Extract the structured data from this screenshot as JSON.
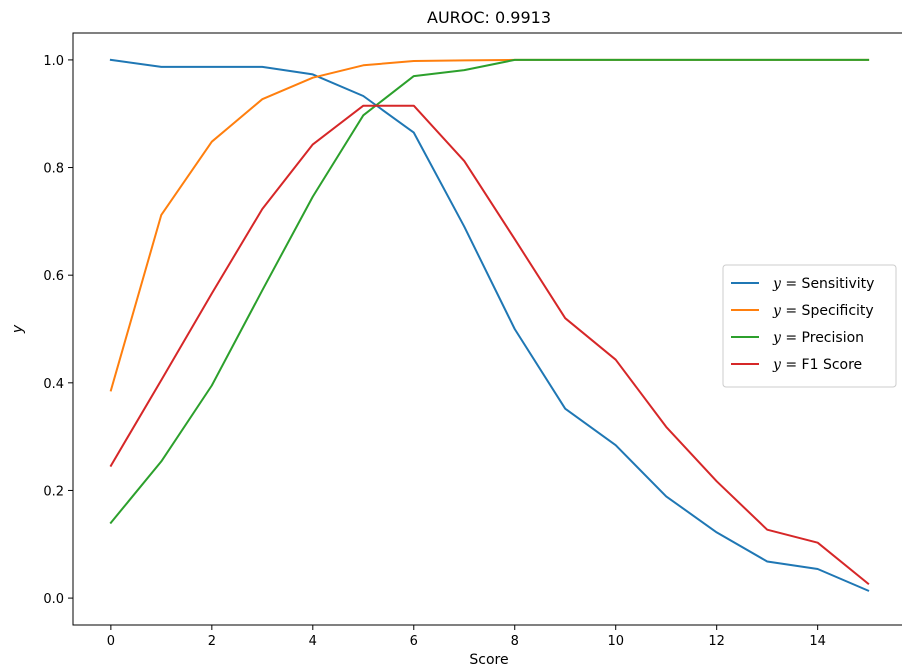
{
  "chart_data": {
    "type": "line",
    "title": "AUROC: 0.9913",
    "xlabel": "Score",
    "ylabel": "y",
    "xlim": [
      -0.75,
      15.75
    ],
    "ylim": [
      -0.05,
      1.05
    ],
    "x_ticks": [
      0,
      2,
      4,
      6,
      8,
      10,
      12,
      14
    ],
    "x_tick_labels": [
      "0",
      "2",
      "4",
      "6",
      "8",
      "10",
      "12",
      "14"
    ],
    "y_ticks": [
      0.0,
      0.2,
      0.4,
      0.6,
      0.8,
      1.0
    ],
    "y_tick_labels": [
      "0.0",
      "0.2",
      "0.4",
      "0.6",
      "0.8",
      "1.0"
    ],
    "grid": false,
    "legend_position": "center-right",
    "x": [
      0,
      1,
      2,
      3,
      4,
      5,
      6,
      7,
      8,
      9,
      10,
      11,
      12,
      13,
      14,
      15
    ],
    "series": [
      {
        "name": "y = Sensitivity",
        "legend_var": "y",
        "legend_label": "Sensitivity",
        "color": "#1f77b4",
        "values": [
          1.0,
          0.987,
          0.987,
          0.987,
          0.973,
          0.933,
          0.865,
          0.69,
          0.5,
          0.352,
          0.284,
          0.189,
          0.122,
          0.068,
          0.054,
          0.014
        ]
      },
      {
        "name": "y = Specificity",
        "legend_var": "y",
        "legend_label": "Specificity",
        "color": "#ff7f0e",
        "values": [
          0.386,
          0.712,
          0.848,
          0.927,
          0.967,
          0.99,
          0.998,
          0.999,
          1.0,
          1.0,
          1.0,
          1.0,
          1.0,
          1.0,
          1.0,
          1.0
        ]
      },
      {
        "name": "y = Precision",
        "legend_var": "y",
        "legend_label": "Precision",
        "color": "#2ca02c",
        "values": [
          0.14,
          0.254,
          0.395,
          0.572,
          0.746,
          0.897,
          0.97,
          0.981,
          1.0,
          1.0,
          1.0,
          1.0,
          1.0,
          1.0,
          1.0,
          1.0
        ]
      },
      {
        "name": "y = F1 Score",
        "legend_var": "y",
        "legend_label": "F1 Score",
        "color": "#d62728",
        "values": [
          0.246,
          0.405,
          0.566,
          0.723,
          0.843,
          0.915,
          0.915,
          0.812,
          0.667,
          0.52,
          0.443,
          0.318,
          0.217,
          0.127,
          0.103,
          0.027
        ]
      }
    ]
  }
}
